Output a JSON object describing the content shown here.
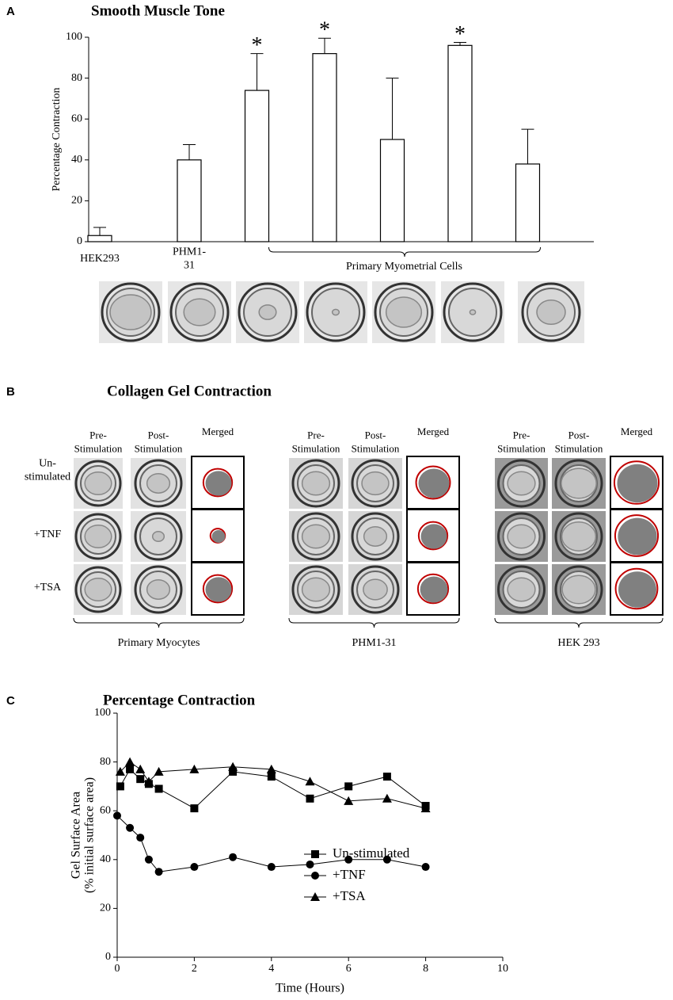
{
  "panel_labels": [
    "A",
    "B",
    "C"
  ],
  "chart_data": [
    {
      "type": "bar",
      "title": "Smooth Muscle Tone",
      "ylabel": "Percentage Contraction",
      "categories": [
        "HEK293",
        "PHM1-\n31",
        null,
        null,
        null,
        null,
        null
      ],
      "group_label": "Primary Myometrial Cells",
      "values": [
        3,
        40,
        74,
        92,
        50,
        96,
        38
      ],
      "errors": [
        4,
        7.5,
        18,
        7.5,
        30,
        1.5,
        17
      ],
      "significance": [
        false,
        false,
        true,
        true,
        false,
        true,
        false
      ],
      "significance_mark": "*",
      "color": "#ffffff",
      "edge_color": "#000000",
      "ylim": [
        0,
        100
      ],
      "yticks": [
        0,
        20,
        40,
        60,
        80,
        100
      ],
      "grid": false
    },
    {
      "type": "line",
      "title": "Percentage Contraction",
      "xlabel": "Time (Hours)",
      "ylabel": "Gel Surface Area\n(% initial  surface area)",
      "xlim": [
        0,
        10
      ],
      "xticks": [
        0,
        2,
        4,
        6,
        8,
        10
      ],
      "ylim": [
        0,
        100
      ],
      "yticks": [
        0,
        20,
        40,
        60,
        80,
        100
      ],
      "grid": false,
      "legend": "lower right",
      "series": [
        {
          "name": "Un-stimulated",
          "color": "#000000",
          "marker": "square",
          "x": [
            0.08,
            0.33,
            0.6,
            0.82,
            1.08,
            2,
            3,
            4,
            5,
            6,
            7,
            8
          ],
          "values": [
            70,
            77,
            73,
            71,
            69,
            61,
            76,
            74,
            65,
            70,
            74,
            62
          ]
        },
        {
          "name": "+TNF",
          "color": "#000000",
          "marker": "circle",
          "x": [
            0,
            0.33,
            0.6,
            0.82,
            1.08,
            2,
            3,
            4,
            5,
            6,
            7,
            8
          ],
          "values": [
            58,
            53,
            49,
            40,
            35,
            37,
            41,
            37,
            38,
            40,
            40,
            37
          ]
        },
        {
          "name": "+TSA",
          "color": "#000000",
          "marker": "triangle",
          "x": [
            0.08,
            0.33,
            0.6,
            0.82,
            1.08,
            2,
            3,
            4,
            5,
            6,
            7,
            8
          ],
          "values": [
            76,
            80,
            77,
            72,
            76,
            77,
            78,
            77,
            72,
            64,
            65,
            61
          ]
        }
      ]
    }
  ],
  "gel_panel": {
    "title": "Collagen Gel Contraction",
    "columns": [
      "Pre-\nStimulation",
      "Post-\nStimulation",
      "Merged"
    ],
    "rows": [
      "Un-\nstimulated",
      "+TNF",
      "+TSA"
    ],
    "groups": [
      "Primary Myocytes",
      "PHM1-31",
      "HEK 293"
    ]
  }
}
